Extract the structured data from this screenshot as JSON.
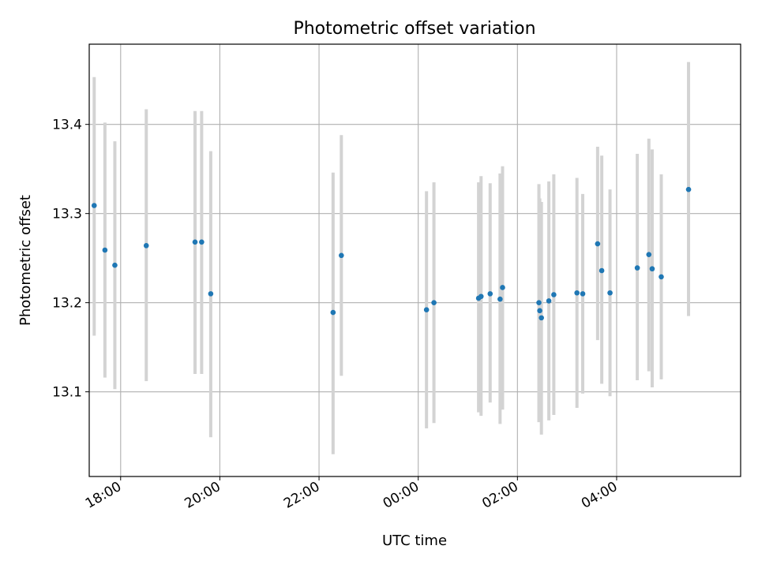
{
  "chart_data": {
    "type": "scatter",
    "title": "Photometric offset variation",
    "xlabel": "UTC time",
    "ylabel": "Photometric offset",
    "x_axis_type": "time",
    "start_date": "2000-01-01",
    "xlim": [
      "17:22",
      "06:30"
    ],
    "ylim": [
      13.005,
      13.49
    ],
    "x_ticks": [
      "18:00",
      "20:00",
      "22:00",
      "00:00",
      "02:00",
      "04:00"
    ],
    "y_ticks": [
      13.1,
      13.2,
      13.3,
      13.4
    ],
    "grid": true,
    "marker_color": "#1f77b4",
    "errorbar_color": "#d3d3d3",
    "points": [
      {
        "t": "17:28",
        "y": 13.309,
        "lo": 13.163,
        "hi": 13.453
      },
      {
        "t": "17:41",
        "y": 13.259,
        "lo": 13.116,
        "hi": 13.402
      },
      {
        "t": "17:53",
        "y": 13.242,
        "lo": 13.103,
        "hi": 13.381
      },
      {
        "t": "18:31",
        "y": 13.264,
        "lo": 13.112,
        "hi": 13.417
      },
      {
        "t": "19:30",
        "y": 13.268,
        "lo": 13.12,
        "hi": 13.415
      },
      {
        "t": "19:38",
        "y": 13.268,
        "lo": 13.12,
        "hi": 13.415
      },
      {
        "t": "19:49",
        "y": 13.21,
        "lo": 13.049,
        "hi": 13.37
      },
      {
        "t": "22:17",
        "y": 13.189,
        "lo": 13.03,
        "hi": 13.346
      },
      {
        "t": "22:27",
        "y": 13.253,
        "lo": 13.118,
        "hi": 13.388
      },
      {
        "t": "00:10",
        "y": 13.192,
        "lo": 13.059,
        "hi": 13.325
      },
      {
        "t": "00:19",
        "y": 13.2,
        "lo": 13.065,
        "hi": 13.335
      },
      {
        "t": "01:13",
        "y": 13.205,
        "lo": 13.077,
        "hi": 13.335
      },
      {
        "t": "01:16",
        "y": 13.207,
        "lo": 13.073,
        "hi": 13.342
      },
      {
        "t": "01:27",
        "y": 13.21,
        "lo": 13.088,
        "hi": 13.334
      },
      {
        "t": "01:39",
        "y": 13.204,
        "lo": 13.064,
        "hi": 13.345
      },
      {
        "t": "01:42",
        "y": 13.217,
        "lo": 13.08,
        "hi": 13.353
      },
      {
        "t": "02:26",
        "y": 13.2,
        "lo": 13.066,
        "hi": 13.333
      },
      {
        "t": "02:27",
        "y": 13.191,
        "lo": 13.067,
        "hi": 13.317
      },
      {
        "t": "02:29",
        "y": 13.183,
        "lo": 13.052,
        "hi": 13.313
      },
      {
        "t": "02:38",
        "y": 13.202,
        "lo": 13.068,
        "hi": 13.336
      },
      {
        "t": "02:44",
        "y": 13.209,
        "lo": 13.074,
        "hi": 13.344
      },
      {
        "t": "03:12",
        "y": 13.211,
        "lo": 13.082,
        "hi": 13.34
      },
      {
        "t": "03:19",
        "y": 13.21,
        "lo": 13.098,
        "hi": 13.322
      },
      {
        "t": "03:37",
        "y": 13.266,
        "lo": 13.158,
        "hi": 13.375
      },
      {
        "t": "03:42",
        "y": 13.236,
        "lo": 13.109,
        "hi": 13.365
      },
      {
        "t": "03:52",
        "y": 13.211,
        "lo": 13.095,
        "hi": 13.327
      },
      {
        "t": "04:25",
        "y": 13.239,
        "lo": 13.113,
        "hi": 13.367
      },
      {
        "t": "04:39",
        "y": 13.254,
        "lo": 13.123,
        "hi": 13.384
      },
      {
        "t": "04:43",
        "y": 13.238,
        "lo": 13.105,
        "hi": 13.372
      },
      {
        "t": "04:54",
        "y": 13.229,
        "lo": 13.114,
        "hi": 13.344
      },
      {
        "t": "05:27",
        "y": 13.327,
        "lo": 13.185,
        "hi": 13.47
      }
    ]
  }
}
